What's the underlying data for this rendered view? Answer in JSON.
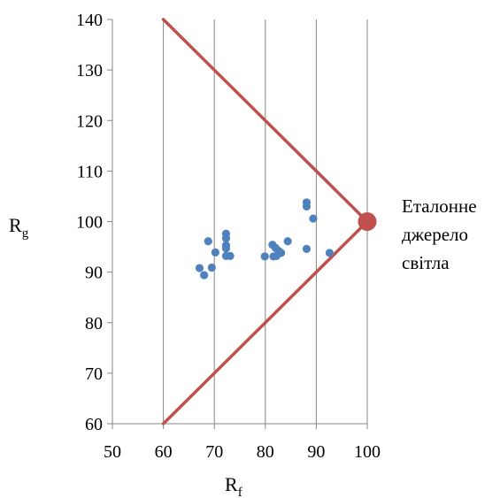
{
  "chart_data": {
    "type": "scatter",
    "xlabel": "R",
    "xlabel_sub": "f",
    "ylabel": "R",
    "ylabel_sub": "g",
    "xlim": [
      50,
      100
    ],
    "ylim": [
      60,
      140
    ],
    "x_ticks": [
      "50",
      "60",
      "70",
      "80",
      "90",
      "100"
    ],
    "y_ticks": [
      "60",
      "70",
      "80",
      "90",
      "100",
      "110",
      "120",
      "130",
      "140"
    ],
    "x_gridlines": [
      60,
      70,
      80,
      90,
      100
    ],
    "grid": "vertical only",
    "series": [
      {
        "values": [
          {
            "x": 67.1,
            "y": 90.8
          },
          {
            "x": 68.0,
            "y": 89.4
          },
          {
            "x": 68.8,
            "y": 96.1
          },
          {
            "x": 69.5,
            "y": 90.9
          },
          {
            "x": 70.2,
            "y": 93.9
          },
          {
            "x": 72.3,
            "y": 97.6
          },
          {
            "x": 72.3,
            "y": 96.7
          },
          {
            "x": 72.3,
            "y": 95.3
          },
          {
            "x": 72.3,
            "y": 94.7
          },
          {
            "x": 72.3,
            "y": 93.2
          },
          {
            "x": 73.1,
            "y": 93.2
          },
          {
            "x": 79.9,
            "y": 93.1
          },
          {
            "x": 81.4,
            "y": 95.4
          },
          {
            "x": 81.6,
            "y": 93.1
          },
          {
            "x": 82.0,
            "y": 94.8
          },
          {
            "x": 82.2,
            "y": 93.2
          },
          {
            "x": 82.6,
            "y": 94.2
          },
          {
            "x": 83.1,
            "y": 93.8
          },
          {
            "x": 84.4,
            "y": 96.1
          },
          {
            "x": 88.1,
            "y": 103.8
          },
          {
            "x": 88.1,
            "y": 103.0
          },
          {
            "x": 88.1,
            "y": 94.6
          },
          {
            "x": 89.4,
            "y": 100.6
          },
          {
            "x": 92.6,
            "y": 93.8
          }
        ],
        "color": "#4f81bd"
      }
    ],
    "boundary_lines": {
      "color": "#c0504d",
      "upper": [
        {
          "x": 60,
          "y": 140
        },
        {
          "x": 100,
          "y": 100
        }
      ],
      "lower": [
        {
          "x": 60,
          "y": 60
        },
        {
          "x": 100,
          "y": 100
        }
      ]
    },
    "reference_point": {
      "x": 100,
      "y": 100,
      "color": "#c0504d"
    },
    "annotation": [
      "Еталонне",
      "джерело",
      "світла"
    ]
  }
}
